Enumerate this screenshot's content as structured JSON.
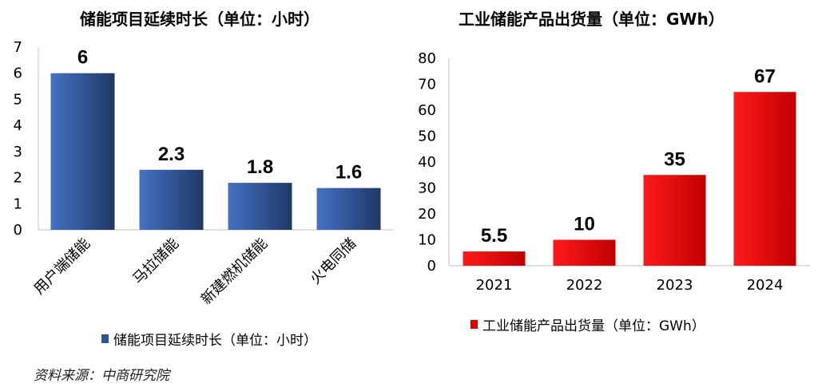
{
  "chart_data": [
    {
      "type": "bar",
      "title": "储能项目延续时长（单位：小时）",
      "categories": [
        "用户端储能",
        "马拉储能",
        "新建燃机储能",
        "火电同储"
      ],
      "series": [
        {
          "name": "储能项目延续时长（单位：小时）",
          "values": [
            6,
            2.3,
            1.8,
            1.6
          ]
        }
      ],
      "value_labels": [
        "6",
        "2.3",
        "1.8",
        "1.6"
      ],
      "y_ticks": [
        "0",
        "1",
        "2",
        "3",
        "4",
        "5",
        "6",
        "7"
      ],
      "ylim": [
        0,
        7
      ],
      "legend_position": "bottom",
      "color": "#2e5597",
      "grid": false
    },
    {
      "type": "bar",
      "title": "工业储能产品出货量（单位：GWh）",
      "categories": [
        "2021",
        "2022",
        "2023",
        "2024"
      ],
      "series": [
        {
          "name": "工业储能产品出货量（单位：GWh）",
          "values": [
            5.5,
            10,
            35,
            67
          ]
        }
      ],
      "value_labels": [
        "5.5",
        "10",
        "35",
        "67"
      ],
      "y_ticks": [
        "0",
        "10",
        "20",
        "30",
        "40",
        "50",
        "60",
        "70",
        "80"
      ],
      "ylim": [
        0,
        80
      ],
      "legend_position": "bottom",
      "color": "#e00000",
      "grid": false
    }
  ],
  "source": "资料来源：中商研究院"
}
